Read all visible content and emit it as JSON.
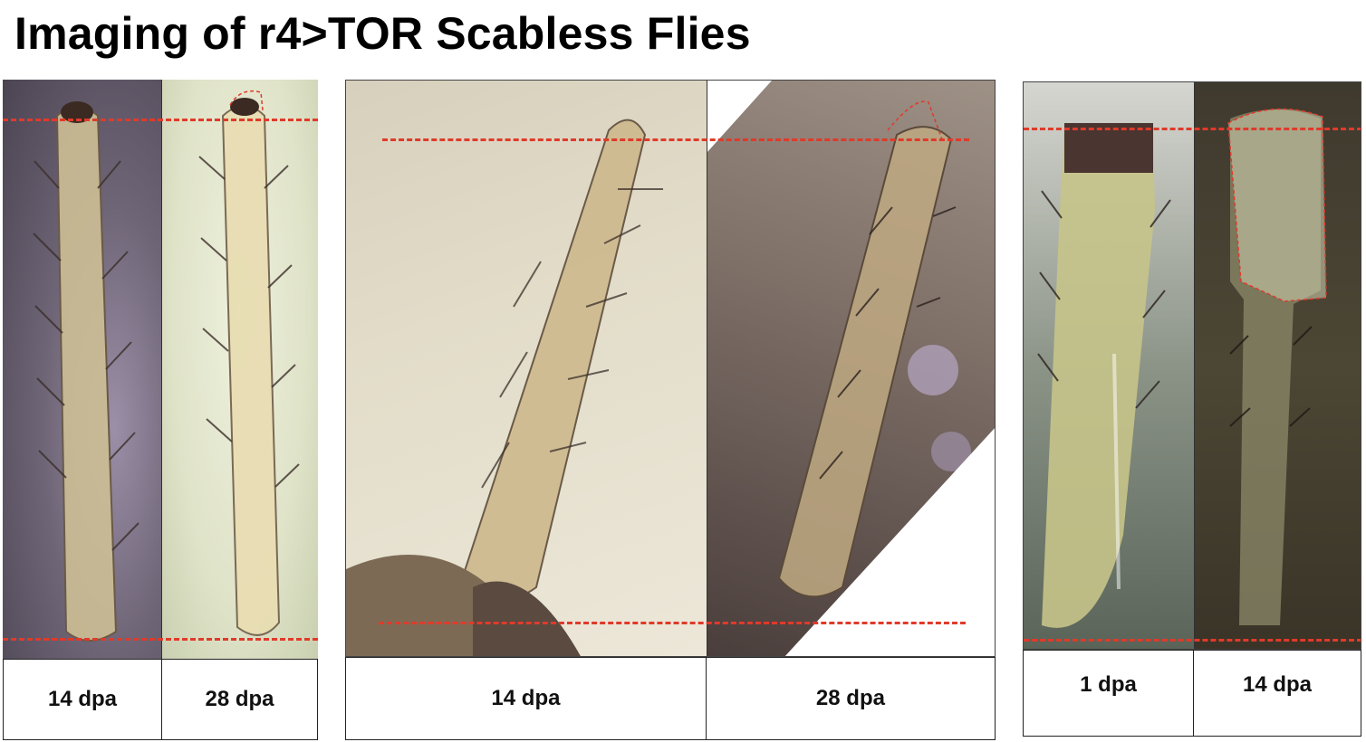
{
  "title": "Imaging of r4>TOR Scabless Flies",
  "panels": [
    {
      "label_left": "14 dpa",
      "label_right": "28 dpa"
    },
    {
      "label_left": "14 dpa",
      "label_right": "28 dpa"
    },
    {
      "label_left": "1 dpa",
      "label_right": "14 dpa"
    }
  ],
  "colors": {
    "guide_line": "#e03a2a",
    "wound_outline": "#e03a2a"
  }
}
